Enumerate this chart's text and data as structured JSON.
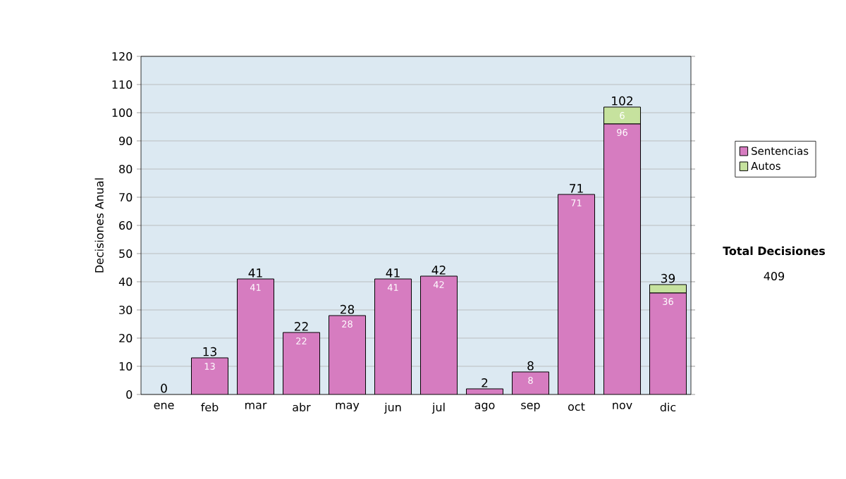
{
  "chart_data": {
    "type": "bar",
    "stacked": true,
    "ylabel": "Decisiones Anual",
    "categories": [
      "ene",
      "feb",
      "mar",
      "abr",
      "may",
      "jun",
      "jul",
      "ago",
      "sep",
      "oct",
      "nov",
      "dic"
    ],
    "series": [
      {
        "name": "Sentencias",
        "color": "#d67cc0",
        "values": [
          0,
          13,
          41,
          22,
          28,
          41,
          42,
          2,
          8,
          71,
          96,
          36
        ],
        "value_labels": [
          null,
          "13",
          "41",
          "22",
          "28",
          "41",
          "42",
          null,
          "8",
          "71",
          "96",
          "36"
        ]
      },
      {
        "name": "Autos",
        "color": "#c6e29e",
        "values": [
          0,
          0,
          0,
          0,
          0,
          0,
          0,
          0,
          0,
          0,
          6,
          3
        ],
        "value_labels": [
          null,
          null,
          null,
          null,
          null,
          null,
          null,
          null,
          null,
          null,
          "6",
          null
        ]
      }
    ],
    "totals": [
      "0",
      "13",
      "41",
      "22",
      "28",
      "41",
      "42",
      "2",
      "8",
      "71",
      "102",
      "39"
    ],
    "ylim": [
      0,
      120
    ],
    "yticks": [
      0,
      10,
      20,
      30,
      40,
      50,
      60,
      70,
      80,
      90,
      100,
      110,
      120
    ],
    "grid": "y",
    "legend": "right",
    "annotations": [
      "Total Decisiones",
      "409"
    ]
  }
}
